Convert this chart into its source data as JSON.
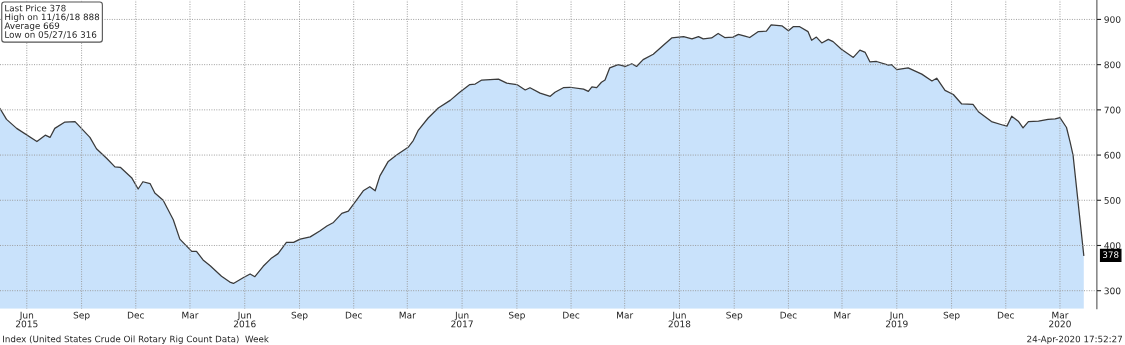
{
  "chart_data": {
    "type": "area",
    "x": [
      "2015-05-01",
      "2015-05-12",
      "2015-05-29",
      "2015-07-02",
      "2015-07-16",
      "2015-07-24",
      "2015-08-01",
      "2015-08-18",
      "2015-09-04",
      "2015-09-29",
      "2015-10-10",
      "2015-10-27",
      "2015-11-10",
      "2015-11-19",
      "2015-12-08",
      "2015-12-19",
      "2015-12-27",
      "2016-01-08",
      "2016-01-16",
      "2016-01-30",
      "2016-02-16",
      "2016-02-27",
      "2016-03-18",
      "2016-03-26",
      "2016-04-06",
      "2016-04-18",
      "2016-05-07",
      "2016-05-21",
      "2016-05-27",
      "2016-06-13",
      "2016-06-24",
      "2016-07-02",
      "2016-07-16",
      "2016-07-29",
      "2016-08-10",
      "2016-08-24",
      "2016-09-05",
      "2016-09-16",
      "2016-10-03",
      "2016-10-19",
      "2016-10-31",
      "2016-11-11",
      "2016-11-25",
      "2016-12-06",
      "2016-12-20",
      "2016-12-31",
      "2017-01-11",
      "2017-01-20",
      "2017-01-28",
      "2017-02-11",
      "2017-02-25",
      "2017-03-17",
      "2017-03-25",
      "2017-04-02",
      "2017-04-19",
      "2017-05-06",
      "2017-05-26",
      "2017-06-11",
      "2017-06-28",
      "2017-07-07",
      "2017-07-18",
      "2017-08-15",
      "2017-08-29",
      "2017-09-15",
      "2017-09-29",
      "2017-10-07",
      "2017-10-24",
      "2017-11-10",
      "2017-11-18",
      "2017-12-02",
      "2017-12-13",
      "2018-01-05",
      "2018-01-13",
      "2018-01-19",
      "2018-01-27",
      "2018-02-04",
      "2018-02-10",
      "2018-02-18",
      "2018-03-04",
      "2018-03-16",
      "2018-03-27",
      "2018-04-04",
      "2018-04-15",
      "2018-05-02",
      "2018-05-19",
      "2018-06-02",
      "2018-06-22",
      "2018-07-06",
      "2018-07-17",
      "2018-07-25",
      "2018-08-08",
      "2018-08-19",
      "2018-08-30",
      "2018-09-13",
      "2018-09-22",
      "2018-10-03",
      "2018-10-11",
      "2018-10-25",
      "2018-11-08",
      "2018-11-16",
      "2018-12-04",
      "2018-12-15",
      "2018-12-23",
      "2019-01-03",
      "2019-01-17",
      "2019-01-23",
      "2019-01-31",
      "2019-02-09",
      "2019-02-20",
      "2019-02-28",
      "2019-03-14",
      "2019-04-03",
      "2019-04-14",
      "2019-04-23",
      "2019-05-01",
      "2019-05-12",
      "2019-06-01",
      "2019-06-06",
      "2019-06-15",
      "2019-07-04",
      "2019-07-27",
      "2019-08-13",
      "2019-08-21",
      "2019-09-04",
      "2019-09-18",
      "2019-10-02",
      "2019-10-21",
      "2019-10-30",
      "2019-11-21",
      "2019-12-11",
      "2019-12-17",
      "2019-12-25",
      "2020-01-05",
      "2020-01-13",
      "2020-01-22",
      "2020-02-08",
      "2020-02-24",
      "2020-03-07",
      "2020-03-15",
      "2020-03-26",
      "2020-04-01",
      "2020-04-06",
      "2020-04-24"
    ],
    "series": [
      {
        "color": "#c9e2fb",
        "values": [
          703,
          679,
          659,
          630,
          644,
          639,
          659,
          673,
          674,
          639,
          614,
          593,
          574,
          573,
          550,
          525,
          541,
          537,
          516,
          500,
          457,
          414,
          387,
          387,
          368,
          355,
          332,
          319,
          316,
          329,
          337,
          331,
          354,
          371,
          382,
          407,
          407,
          414,
          419,
          432,
          443,
          451,
          471,
          476,
          501,
          521,
          530,
          521,
          554,
          586,
          600,
          618,
          632,
          654,
          682,
          704,
          721,
          739,
          756,
          757,
          766,
          768,
          759,
          756,
          744,
          749,
          737,
          730,
          739,
          749,
          750,
          746,
          741,
          751,
          749,
          761,
          766,
          793,
          800,
          796,
          802,
          796,
          811,
          823,
          843,
          859,
          862,
          857,
          862,
          857,
          859,
          869,
          860,
          861,
          867,
          863,
          860,
          873,
          874,
          888,
          886,
          875,
          884,
          884,
          873,
          854,
          861,
          848,
          856,
          851,
          834,
          816,
          832,
          827,
          806,
          807,
          799,
          800,
          789,
          793,
          779,
          764,
          770,
          743,
          734,
          713,
          712,
          696,
          674,
          666,
          664,
          686,
          675,
          660,
          674,
          675,
          679,
          680,
          683,
          661,
          629,
          600,
          378
        ]
      }
    ],
    "xlim": [
      "2015-05-01",
      "2020-05-16"
    ],
    "xticks": [
      {
        "value": "2015-06-15",
        "label": "Jun\n2015"
      },
      {
        "value": "2015-09-15",
        "label": "Sep"
      },
      {
        "value": "2015-12-15",
        "label": "Dec"
      },
      {
        "value": "2016-03-15",
        "label": "Mar"
      },
      {
        "value": "2016-06-15",
        "label": "Jun\n2016"
      },
      {
        "value": "2016-09-15",
        "label": "Sep"
      },
      {
        "value": "2016-12-15",
        "label": "Dec"
      },
      {
        "value": "2017-03-15",
        "label": "Mar"
      },
      {
        "value": "2017-06-15",
        "label": "Jun\n2017"
      },
      {
        "value": "2017-09-15",
        "label": "Sep"
      },
      {
        "value": "2017-12-15",
        "label": "Dec"
      },
      {
        "value": "2018-03-15",
        "label": "Mar"
      },
      {
        "value": "2018-06-15",
        "label": "Jun\n2018"
      },
      {
        "value": "2018-09-15",
        "label": "Sep"
      },
      {
        "value": "2018-12-15",
        "label": "Dec"
      },
      {
        "value": "2019-03-15",
        "label": "Mar"
      },
      {
        "value": "2019-06-15",
        "label": "Jun\n2019"
      },
      {
        "value": "2019-09-15",
        "label": "Sep"
      },
      {
        "value": "2019-12-15",
        "label": "Dec"
      },
      {
        "value": "2020-03-15",
        "label": "Mar\n2020"
      }
    ],
    "ylim": [
      260,
      943
    ],
    "yticks": [
      300,
      400,
      500,
      600,
      700,
      800,
      900
    ],
    "grid": true,
    "annotations": [
      "Last Price 378",
      "High on 11/16/18 888",
      "Average 669",
      "Low on 05/27/16 316",
      {
        "text": "378",
        "x": "2020-04-24",
        "y": 378
      },
      "Index (United States Crude Oil Rotary Rig Count Data)  Week",
      "24-Apr-2020 17:52:27"
    ]
  }
}
